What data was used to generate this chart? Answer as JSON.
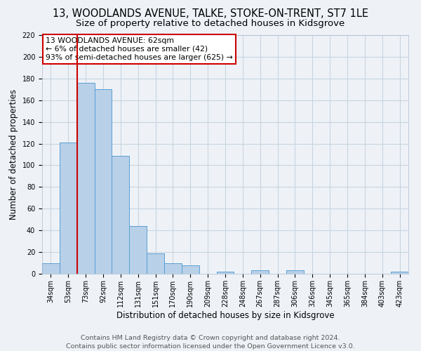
{
  "title": "13, WOODLANDS AVENUE, TALKE, STOKE-ON-TRENT, ST7 1LE",
  "subtitle": "Size of property relative to detached houses in Kidsgrove",
  "xlabel": "Distribution of detached houses by size in Kidsgrove",
  "ylabel": "Number of detached properties",
  "categories": [
    "34sqm",
    "53sqm",
    "73sqm",
    "92sqm",
    "112sqm",
    "131sqm",
    "151sqm",
    "170sqm",
    "190sqm",
    "209sqm",
    "228sqm",
    "248sqm",
    "267sqm",
    "287sqm",
    "306sqm",
    "326sqm",
    "345sqm",
    "365sqm",
    "384sqm",
    "403sqm",
    "423sqm"
  ],
  "bar_values": [
    10,
    121,
    176,
    170,
    109,
    44,
    19,
    10,
    8,
    0,
    2,
    0,
    3,
    0,
    3,
    0,
    0,
    0,
    0,
    0,
    2
  ],
  "bar_color": "#b8d0e8",
  "bar_edge_color": "#5a9fd4",
  "vline_x": 1.5,
  "vline_color": "#cc0000",
  "ylim": [
    0,
    220
  ],
  "yticks": [
    0,
    20,
    40,
    60,
    80,
    100,
    120,
    140,
    160,
    180,
    200,
    220
  ],
  "annotation_title": "13 WOODLANDS AVENUE: 62sqm",
  "annotation_line2": "← 6% of detached houses are smaller (42)",
  "annotation_line3": "93% of semi-detached houses are larger (625) →",
  "annotation_box_color": "#ffffff",
  "annotation_box_edge": "#cc0000",
  "footer1": "Contains HM Land Registry data © Crown copyright and database right 2024.",
  "footer2": "Contains public sector information licensed under the Open Government Licence v3.0.",
  "bg_color": "#eef2f7",
  "grid_color": "#c8d4e0",
  "title_fontsize": 10.5,
  "subtitle_fontsize": 9.5,
  "axis_label_fontsize": 8.5,
  "tick_fontsize": 7,
  "annotation_fontsize": 7.8,
  "footer_fontsize": 6.8
}
